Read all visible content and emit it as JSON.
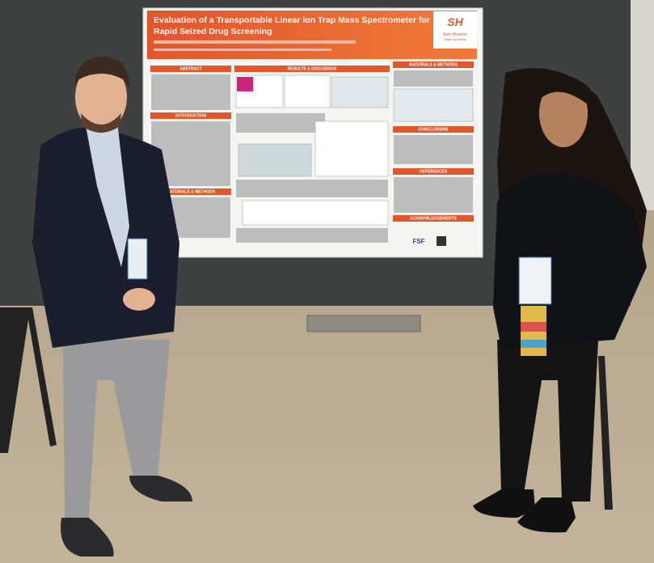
{
  "poster": {
    "title_line1": "Evaluation of a Transportable Linear Ion Trap Mass Spectrometer for",
    "title_line2": "Rapid Seized Drug Screening",
    "logo_mark": "SH",
    "logo_text_line1": "Sam Houston",
    "logo_text_line2": "State University",
    "sections": [
      "ABSTRACT",
      "RESULTS & DISCUSSION",
      "MATERIALS & METHODS",
      "INTRODUCTION",
      "CONCLUSIONS",
      "MATERIALS & METHODS",
      "REFERENCES",
      "ACKNOWLEDGEMENTS"
    ],
    "footer_logo": "FSF"
  }
}
